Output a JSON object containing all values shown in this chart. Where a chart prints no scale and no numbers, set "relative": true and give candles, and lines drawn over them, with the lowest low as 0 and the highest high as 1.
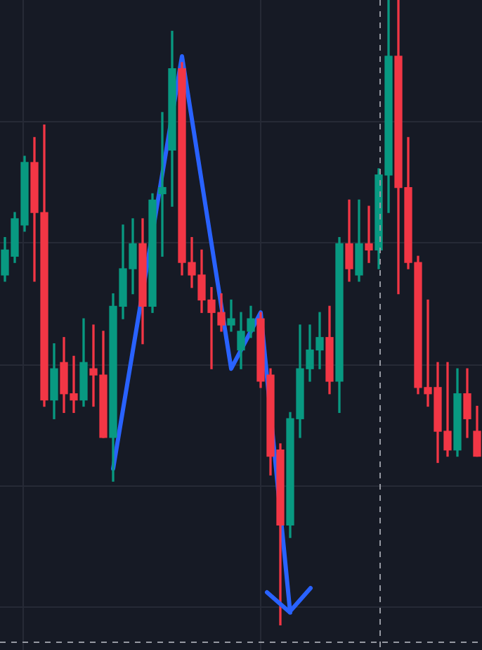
{
  "chart_data": {
    "type": "candlestick",
    "relative": true,
    "grid": true,
    "categories": [
      null,
      null,
      null,
      null,
      null,
      null,
      null,
      null,
      null,
      null,
      null,
      null,
      null,
      null,
      null,
      null,
      null,
      null,
      null,
      null,
      null,
      null,
      null,
      null,
      null,
      null,
      null,
      null,
      null,
      null,
      null,
      null,
      null,
      null,
      null,
      null,
      null,
      null,
      null,
      null,
      null,
      null,
      null,
      null,
      null,
      null,
      null,
      null,
      null
    ],
    "ohlc": [
      [
        0.56,
        0.62,
        0.55,
        0.6
      ],
      [
        0.59,
        0.66,
        0.58,
        0.65
      ],
      [
        0.64,
        0.75,
        0.63,
        0.74
      ],
      [
        0.74,
        0.78,
        0.55,
        0.66
      ],
      [
        0.66,
        0.8,
        0.35,
        0.36
      ],
      [
        0.36,
        0.45,
        0.33,
        0.41
      ],
      [
        0.42,
        0.46,
        0.34,
        0.37
      ],
      [
        0.37,
        0.43,
        0.34,
        0.36
      ],
      [
        0.36,
        0.49,
        0.35,
        0.42
      ],
      [
        0.41,
        0.48,
        0.35,
        0.4
      ],
      [
        0.4,
        0.47,
        0.3,
        0.3
      ],
      [
        0.3,
        0.53,
        0.23,
        0.51
      ],
      [
        0.51,
        0.64,
        0.49,
        0.57
      ],
      [
        0.57,
        0.65,
        0.53,
        0.61
      ],
      [
        0.61,
        0.65,
        0.45,
        0.51
      ],
      [
        0.51,
        0.69,
        0.5,
        0.68
      ],
      [
        0.69,
        0.82,
        0.59,
        0.7
      ],
      [
        0.76,
        0.95,
        0.67,
        0.89
      ],
      [
        0.89,
        0.9,
        0.56,
        0.58
      ],
      [
        0.58,
        0.62,
        0.54,
        0.56
      ],
      [
        0.56,
        0.6,
        0.5,
        0.52
      ],
      [
        0.52,
        0.54,
        0.41,
        0.5
      ],
      [
        0.5,
        0.53,
        0.47,
        0.48
      ],
      [
        0.48,
        0.52,
        0.47,
        0.49
      ],
      [
        0.44,
        0.5,
        0.41,
        0.47
      ],
      [
        0.47,
        0.51,
        0.46,
        0.49
      ],
      [
        0.49,
        0.5,
        0.38,
        0.39
      ],
      [
        0.4,
        0.41,
        0.24,
        0.27
      ],
      [
        0.28,
        0.29,
        0,
        0.16
      ],
      [
        0.16,
        0.34,
        0.14,
        0.33
      ],
      [
        0.33,
        0.48,
        0.3,
        0.41
      ],
      [
        0.41,
        0.48,
        0.39,
        0.44
      ],
      [
        0.44,
        0.5,
        0.41,
        0.46
      ],
      [
        0.46,
        0.51,
        0.37,
        0.39
      ],
      [
        0.39,
        0.62,
        0.34,
        0.61
      ],
      [
        0.61,
        0.68,
        0.55,
        0.57
      ],
      [
        0.56,
        0.68,
        0.55,
        0.61
      ],
      [
        0.61,
        0.67,
        0.58,
        0.6
      ],
      [
        0.6,
        0.73,
        0.57,
        0.72
      ],
      [
        0.72,
        1,
        0.66,
        0.91
      ],
      [
        0.91,
        1,
        0.53,
        0.7
      ],
      [
        0.7,
        0.78,
        0.57,
        0.58
      ],
      [
        0.58,
        0.59,
        0.37,
        0.38
      ],
      [
        0.38,
        0.52,
        0.35,
        0.37
      ],
      [
        0.38,
        0.42,
        0.26,
        0.31
      ],
      [
        0.31,
        0.42,
        0.27,
        0.28
      ],
      [
        0.28,
        0.41,
        0.27,
        0.37
      ],
      [
        0.37,
        0.41,
        0.3,
        0.33
      ],
      [
        0.31,
        0.35,
        0.27,
        0.27
      ]
    ],
    "colors": [
      "#089981",
      "#089981",
      "#089981",
      "#f23645",
      "#f23645",
      "#089981",
      "#f23645",
      "#f23645",
      "#089981",
      "#f23645",
      "#f23645",
      "#089981",
      "#089981",
      "#089981",
      "#f23645",
      "#089981",
      "#089981",
      "#089981",
      "#f23645",
      "#f23645",
      "#f23645",
      "#f23645",
      "#f23645",
      "#089981",
      "#089981",
      "#089981",
      "#f23645",
      "#f23645",
      "#f23645",
      "#089981",
      "#089981",
      "#089981",
      "#089981",
      "#f23645",
      "#089981",
      "#f23645",
      "#089981",
      "#f23645",
      "#089981",
      "#089981",
      "#f23645",
      "#f23645",
      "#f23645",
      "#f23645",
      "#f23645",
      "#f23645",
      "#089981",
      "#f23645",
      "#f23645"
    ],
    "series": [
      {
        "type": "line",
        "color": "#2962ff",
        "values": [
          null,
          null,
          null,
          null,
          null,
          null,
          null,
          null,
          null,
          null,
          null,
          0.25,
          null,
          null,
          null,
          null,
          null,
          null,
          0.91,
          null,
          null,
          null,
          null,
          0.41,
          null,
          null,
          0.5,
          null,
          null,
          0.02,
          null,
          null,
          null,
          null,
          null,
          null,
          null,
          null,
          null,
          null,
          null,
          null,
          null,
          null,
          null,
          null,
          null,
          null,
          null
        ]
      }
    ]
  }
}
